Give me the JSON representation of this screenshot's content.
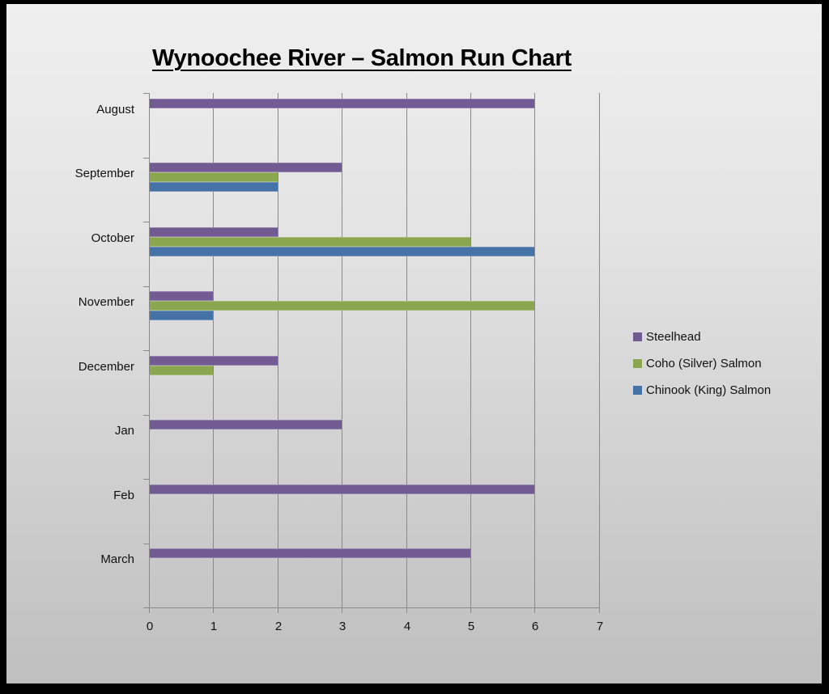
{
  "chart_data": {
    "type": "bar",
    "orientation": "horizontal",
    "title": "Wynoochee River – Salmon Run Chart",
    "xlabel": "",
    "ylabel": "",
    "xlim": [
      0,
      7
    ],
    "x_ticks": [
      "0",
      "1",
      "2",
      "3",
      "4",
      "5",
      "6",
      "7"
    ],
    "grid": true,
    "legend_position": "right",
    "categories": [
      "August",
      "September",
      "October",
      "November",
      "December",
      "Jan",
      "Feb",
      "March"
    ],
    "series": [
      {
        "name": "Steelhead",
        "color": "#725a92",
        "values": [
          6,
          3,
          2,
          1,
          2,
          3,
          6,
          5
        ]
      },
      {
        "name": "Coho (Silver) Salmon",
        "color": "#8aa64e",
        "values": [
          0,
          2,
          5,
          6,
          1,
          0,
          0,
          0
        ]
      },
      {
        "name": "Chinook (King) Salmon",
        "color": "#4572a7",
        "values": [
          0,
          2,
          6,
          1,
          0,
          0,
          0,
          0
        ]
      }
    ]
  }
}
